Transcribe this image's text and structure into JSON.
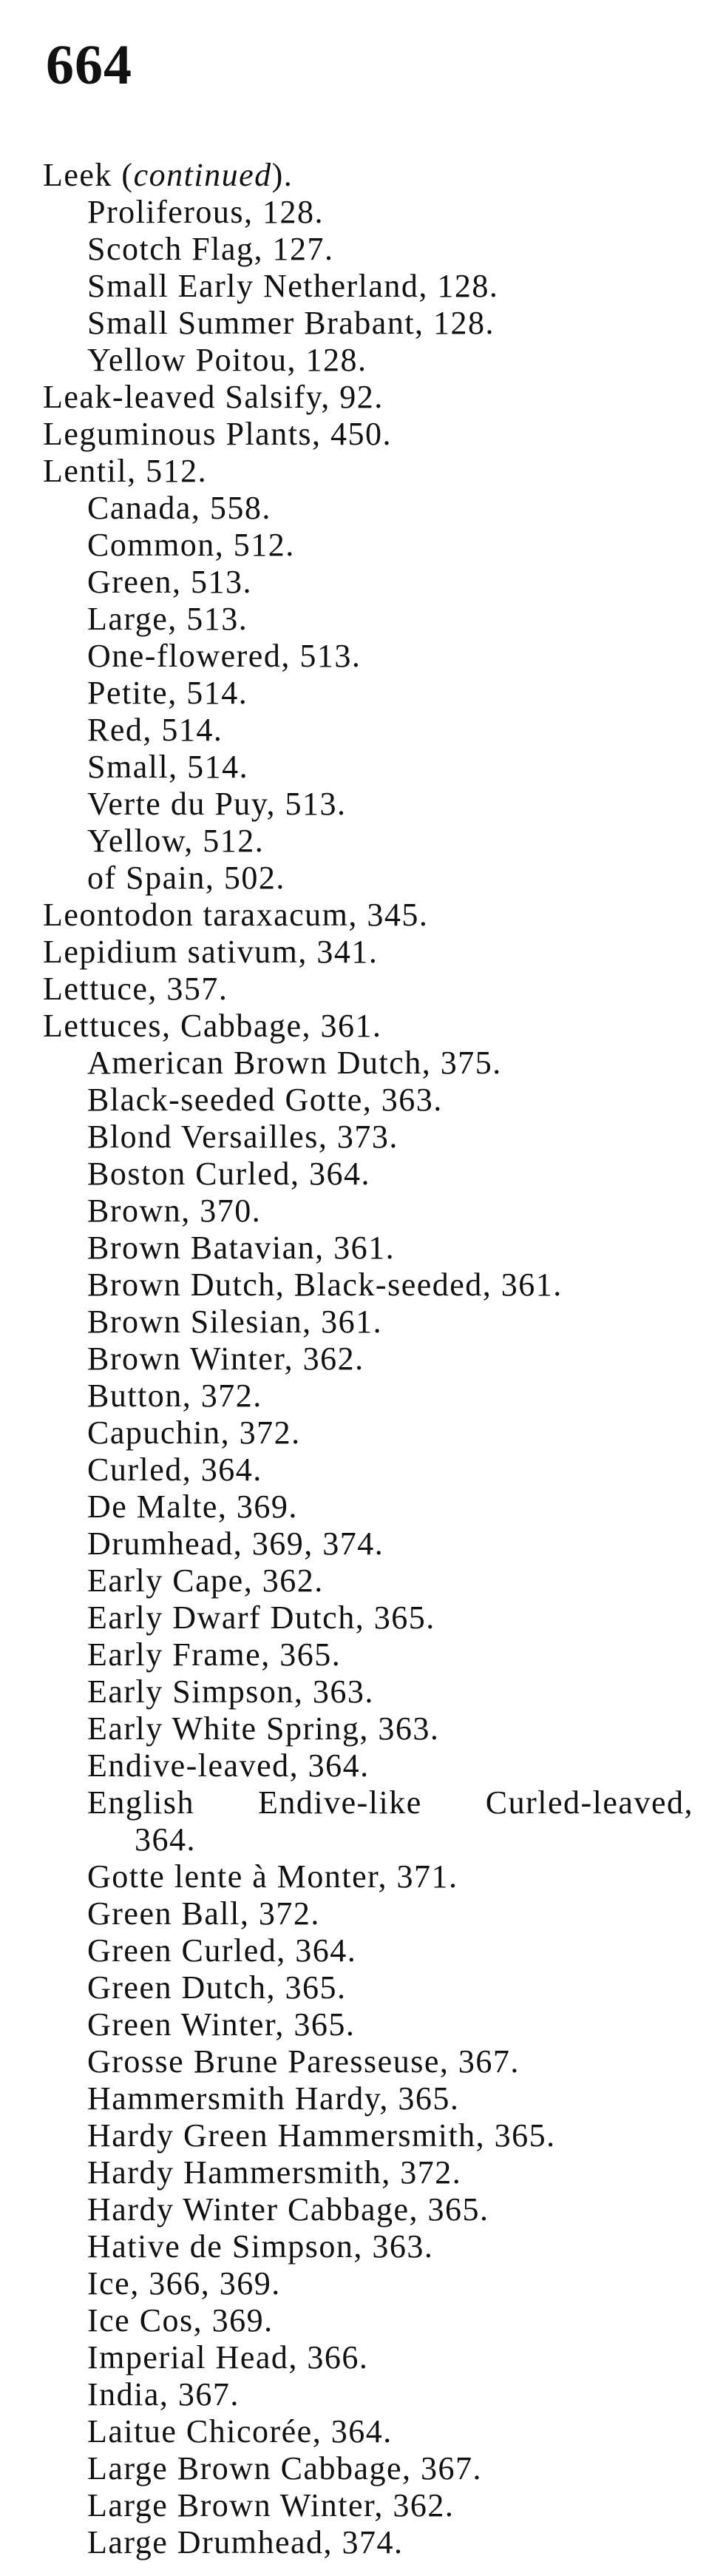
{
  "page_number": "664",
  "entries": [
    {
      "level": 0,
      "text": "Leek (",
      "italic": "continued",
      "after": ")."
    },
    {
      "level": 1,
      "text": "Proliferous, 128."
    },
    {
      "level": 1,
      "text": "Scotch Flag, 127."
    },
    {
      "level": 1,
      "text": "Small Early Netherland, 128."
    },
    {
      "level": 1,
      "text": "Small Summer Brabant, 128."
    },
    {
      "level": 1,
      "text": "Yellow Poitou, 128."
    },
    {
      "level": 0,
      "text": "Leak-leaved Salsify, 92."
    },
    {
      "level": 0,
      "text": "Leguminous Plants, 450."
    },
    {
      "level": 0,
      "text": "Lentil, 512."
    },
    {
      "level": 1,
      "text": "Canada, 558."
    },
    {
      "level": 1,
      "text": "Common, 512."
    },
    {
      "level": 1,
      "text": "Green, 513."
    },
    {
      "level": 1,
      "text": "Large, 513."
    },
    {
      "level": 1,
      "text": "One-flowered, 513."
    },
    {
      "level": 1,
      "text": "Petite, 514."
    },
    {
      "level": 1,
      "text": "Red, 514."
    },
    {
      "level": 1,
      "text": "Small, 514."
    },
    {
      "level": 1,
      "text": "Verte du Puy, 513."
    },
    {
      "level": 1,
      "text": "Yellow, 512."
    },
    {
      "level": 1,
      "text": "of Spain, 502."
    },
    {
      "level": 0,
      "text": "Leontodon taraxacum, 345."
    },
    {
      "level": 0,
      "text": "Lepidium sativum, 341."
    },
    {
      "level": 0,
      "text": "Lettuce, 357."
    },
    {
      "level": 0,
      "text": "Lettuces, Cabbage, 361."
    },
    {
      "level": 1,
      "text": "American Brown Dutch, 375."
    },
    {
      "level": 1,
      "text": "Black-seeded Gotte, 363."
    },
    {
      "level": 1,
      "text": "Blond Versailles, 373."
    },
    {
      "level": 1,
      "text": "Boston Curled, 364."
    },
    {
      "level": 1,
      "text": "Brown, 370."
    },
    {
      "level": 1,
      "text": "Brown Batavian, 361."
    },
    {
      "level": 1,
      "text": "Brown Dutch, Black-seeded, 361."
    },
    {
      "level": 1,
      "text": "Brown Silesian, 361."
    },
    {
      "level": 1,
      "text": "Brown Winter, 362."
    },
    {
      "level": 1,
      "text": "Button, 372."
    },
    {
      "level": 1,
      "text": "Capuchin, 372."
    },
    {
      "level": 1,
      "text": "Curled, 364."
    },
    {
      "level": 1,
      "text": "De Malte, 369."
    },
    {
      "level": 1,
      "text": "Drumhead, 369, 374."
    },
    {
      "level": 1,
      "text": "Early Cape, 362."
    },
    {
      "level": 1,
      "text": "Early Dwarf Dutch, 365."
    },
    {
      "level": 1,
      "text": "Early Frame, 365."
    },
    {
      "level": 1,
      "text": "Early Simpson, 363."
    },
    {
      "level": 1,
      "text": "Early White Spring, 363."
    },
    {
      "level": 1,
      "text": "Endive-leaved, 364."
    },
    {
      "level": 1,
      "text": "English Endive-like Curled-leaved,",
      "justify": true
    },
    {
      "level": 2,
      "text": "364."
    },
    {
      "level": 1,
      "text": "Gotte lente à Monter, 371."
    },
    {
      "level": 1,
      "text": "Green Ball, 372."
    },
    {
      "level": 1,
      "text": "Green Curled, 364."
    },
    {
      "level": 1,
      "text": "Green Dutch, 365."
    },
    {
      "level": 1,
      "text": "Green Winter, 365."
    },
    {
      "level": 1,
      "text": "Grosse Brune Paresseuse, 367."
    },
    {
      "level": 1,
      "text": "Hammersmith Hardy, 365."
    },
    {
      "level": 1,
      "text": "Hardy Green Hammersmith, 365."
    },
    {
      "level": 1,
      "text": "Hardy Hammersmith, 372."
    },
    {
      "level": 1,
      "text": "Hardy Winter Cabbage, 365."
    },
    {
      "level": 1,
      "text": "Hative de Simpson, 363."
    },
    {
      "level": 1,
      "text": "Ice, 366, 369."
    },
    {
      "level": 1,
      "text": "Ice Cos, 369."
    },
    {
      "level": 1,
      "text": "Imperial Head, 366."
    },
    {
      "level": 1,
      "text": "India, 367."
    },
    {
      "level": 1,
      "text": "Laitue Chicorée, 364."
    },
    {
      "level": 1,
      "text": "Large Brown Cabbage, 367."
    },
    {
      "level": 1,
      "text": "Large Brown Winter, 362."
    },
    {
      "level": 1,
      "text": "Large Drumhead, 374."
    }
  ]
}
